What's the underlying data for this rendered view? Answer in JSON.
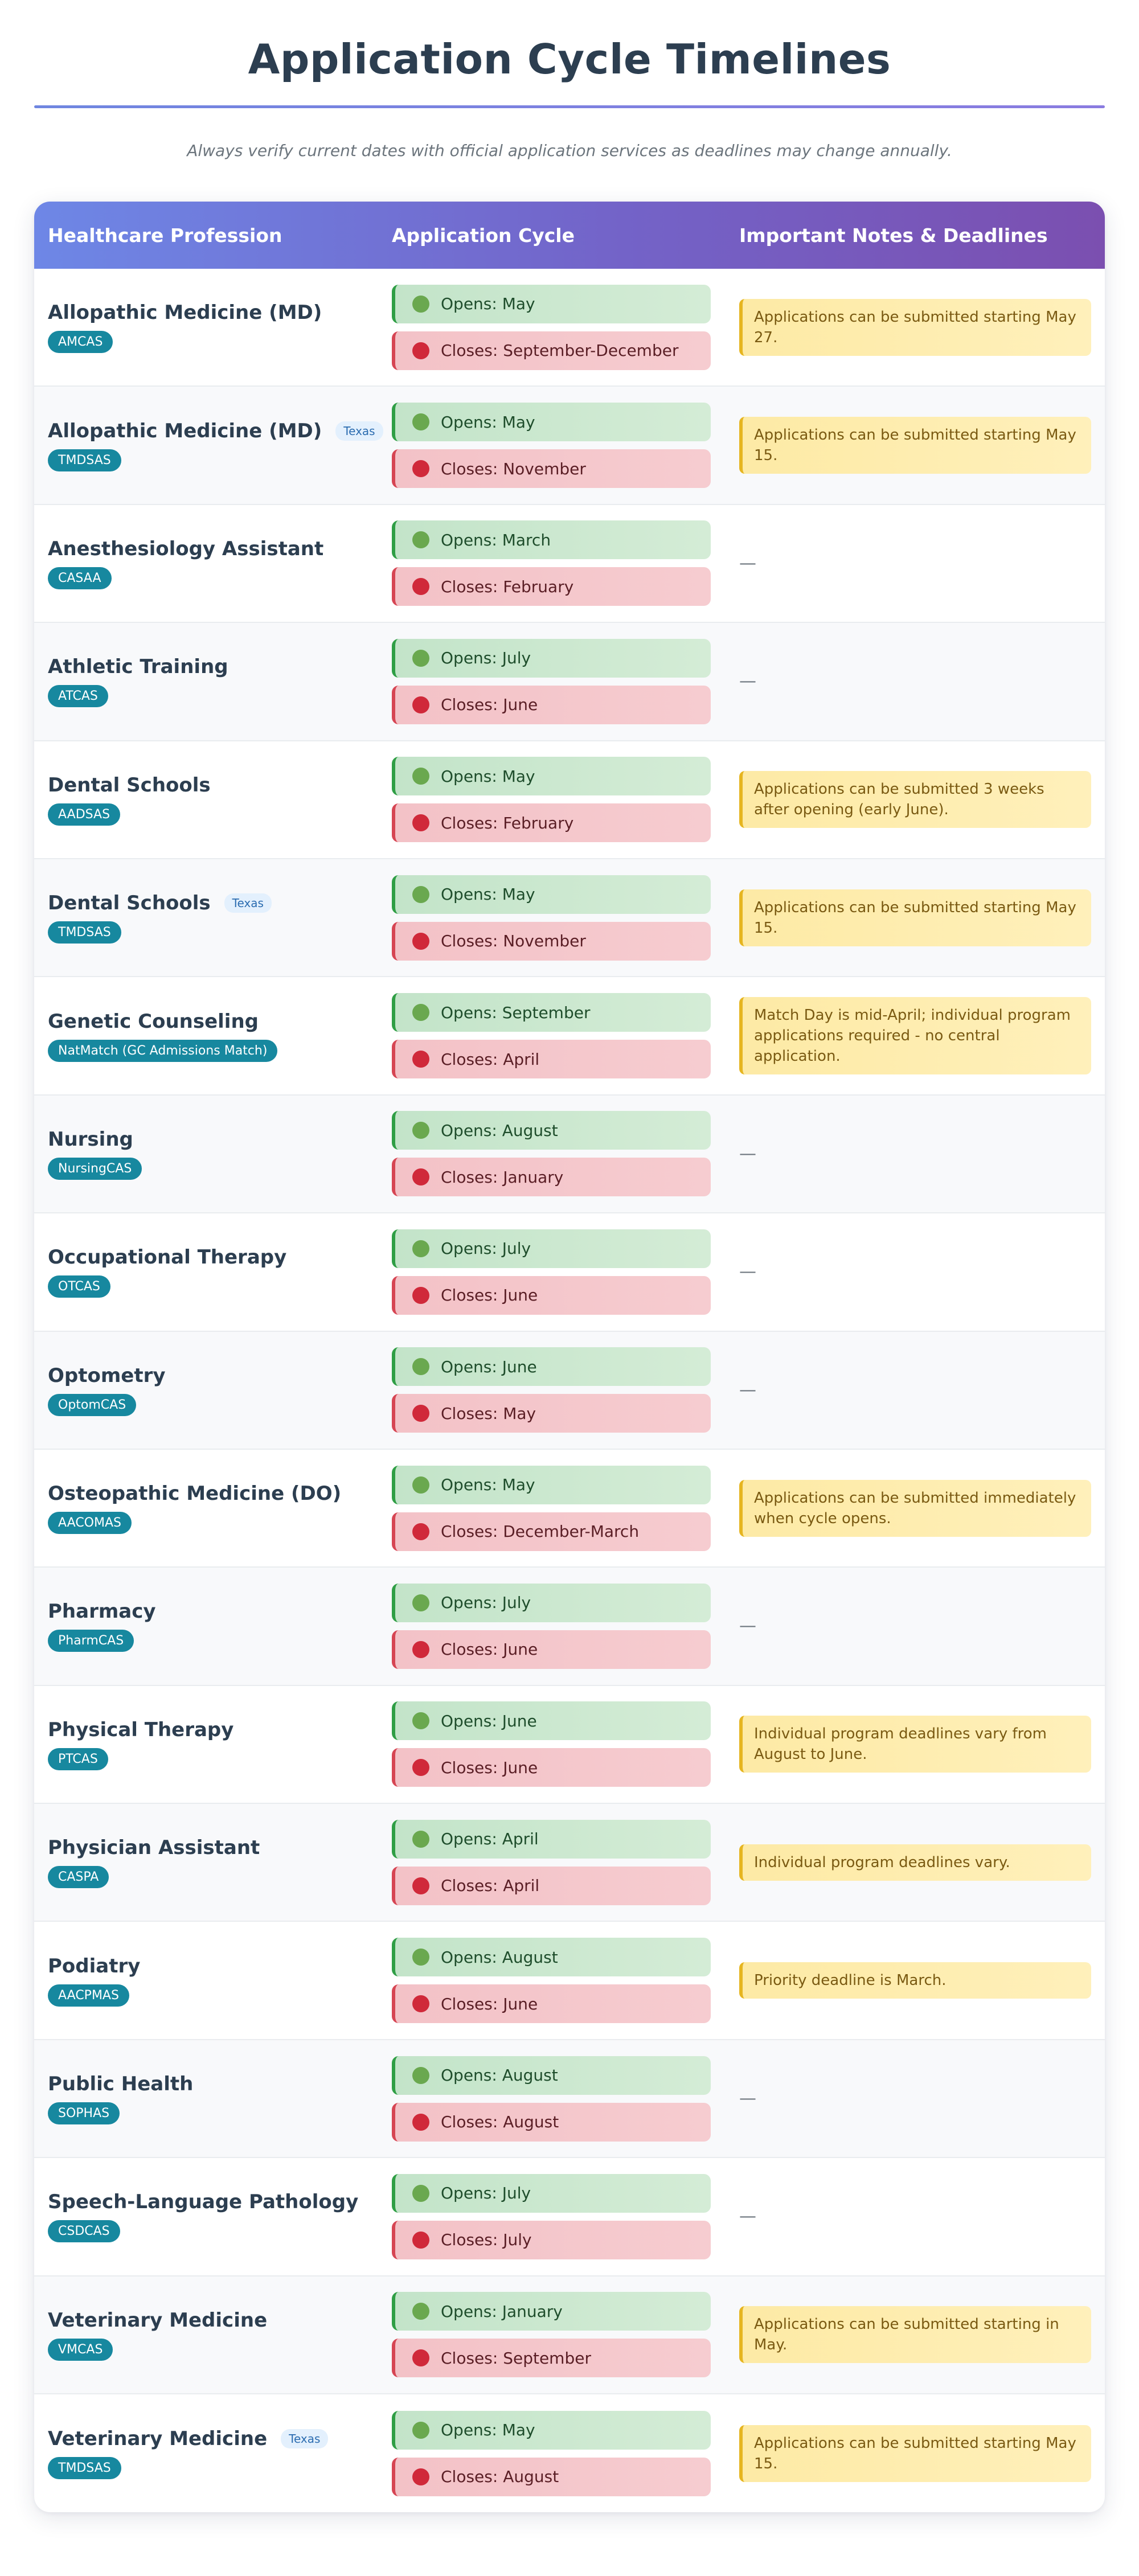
{
  "page": {
    "title": "Application Cycle Timelines",
    "subtitle": "Always verify current dates with official application services as deadlines may change annually."
  },
  "table": {
    "headers": [
      "Healthcare Profession",
      "Application Cycle",
      "Important Notes & Deadlines"
    ],
    "rows": [
      {
        "profession": "Allopathic Medicine (MD)",
        "state": "",
        "service": "AMCAS",
        "opens": "Opens: May",
        "closes": "Closes: September-December",
        "note": "Applications can be submitted starting May 27."
      },
      {
        "profession": "Allopathic Medicine (MD)",
        "state": "Texas",
        "service": "TMDSAS",
        "opens": "Opens: May",
        "closes": "Closes: November",
        "note": "Applications can be submitted starting May 15."
      },
      {
        "profession": "Anesthesiology Assistant",
        "state": "",
        "service": "CASAA",
        "opens": "Opens: March",
        "closes": "Closes: February",
        "note": "—"
      },
      {
        "profession": "Athletic Training",
        "state": "",
        "service": "ATCAS",
        "opens": "Opens: July",
        "closes": "Closes: June",
        "note": "—"
      },
      {
        "profession": "Dental Schools",
        "state": "",
        "service": "AADSAS",
        "opens": "Opens: May",
        "closes": "Closes: February",
        "note": "Applications can be submitted 3 weeks after opening (early June)."
      },
      {
        "profession": "Dental Schools",
        "state": "Texas",
        "service": "TMDSAS",
        "opens": "Opens: May",
        "closes": "Closes: November",
        "note": "Applications can be submitted starting May 15."
      },
      {
        "profession": "Genetic Counseling",
        "state": "",
        "service": "NatMatch (GC Admissions Match)",
        "opens": "Opens: September",
        "closes": "Closes: April",
        "note": "Match Day is mid-April; individual program applications required - no central application."
      },
      {
        "profession": "Nursing",
        "state": "",
        "service": "NursingCAS",
        "opens": "Opens: August",
        "closes": "Closes: January",
        "note": "—"
      },
      {
        "profession": "Occupational Therapy",
        "state": "",
        "service": "OTCAS",
        "opens": "Opens: July",
        "closes": "Closes: June",
        "note": "—"
      },
      {
        "profession": "Optometry",
        "state": "",
        "service": "OptomCAS",
        "opens": "Opens: June",
        "closes": "Closes: May",
        "note": "—"
      },
      {
        "profession": "Osteopathic Medicine (DO)",
        "state": "",
        "service": "AACOMAS",
        "opens": "Opens: May",
        "closes": "Closes: December-March",
        "note": "Applications can be submitted immediately when cycle opens."
      },
      {
        "profession": "Pharmacy",
        "state": "",
        "service": "PharmCAS",
        "opens": "Opens: July",
        "closes": "Closes: June",
        "note": "—"
      },
      {
        "profession": "Physical Therapy",
        "state": "",
        "service": "PTCAS",
        "opens": "Opens: June",
        "closes": "Closes: June",
        "note": "Individual program deadlines vary from August to June."
      },
      {
        "profession": "Physician Assistant",
        "state": "",
        "service": "CASPA",
        "opens": "Opens: April",
        "closes": "Closes: April",
        "note": "Individual program deadlines vary."
      },
      {
        "profession": "Podiatry",
        "state": "",
        "service": "AACPMAS",
        "opens": "Opens: August",
        "closes": "Closes: June",
        "note": "Priority deadline is March."
      },
      {
        "profession": "Public Health",
        "state": "",
        "service": "SOPHAS",
        "opens": "Opens: August",
        "closes": "Closes: August",
        "note": "—"
      },
      {
        "profession": "Speech-Language Pathology",
        "state": "",
        "service": "CSDCAS",
        "opens": "Opens: July",
        "closes": "Closes: July",
        "note": "—"
      },
      {
        "profession": "Veterinary Medicine",
        "state": "",
        "service": "VMCAS",
        "opens": "Opens: January",
        "closes": "Closes: September",
        "note": "Applications can be submitted starting in May."
      },
      {
        "profession": "Veterinary Medicine",
        "state": "Texas",
        "service": "TMDSAS",
        "opens": "Opens: May",
        "closes": "Closes: August",
        "note": "Applications can be submitted starting May 15."
      }
    ]
  },
  "colors": {
    "header_gradient_start": "#6e87e6",
    "header_gradient_end": "#7b4fb0",
    "service_badge": "#17889f",
    "open_dot": "#6aa84f",
    "close_dot": "#d0293a",
    "note_background": "#fdeaa5"
  }
}
